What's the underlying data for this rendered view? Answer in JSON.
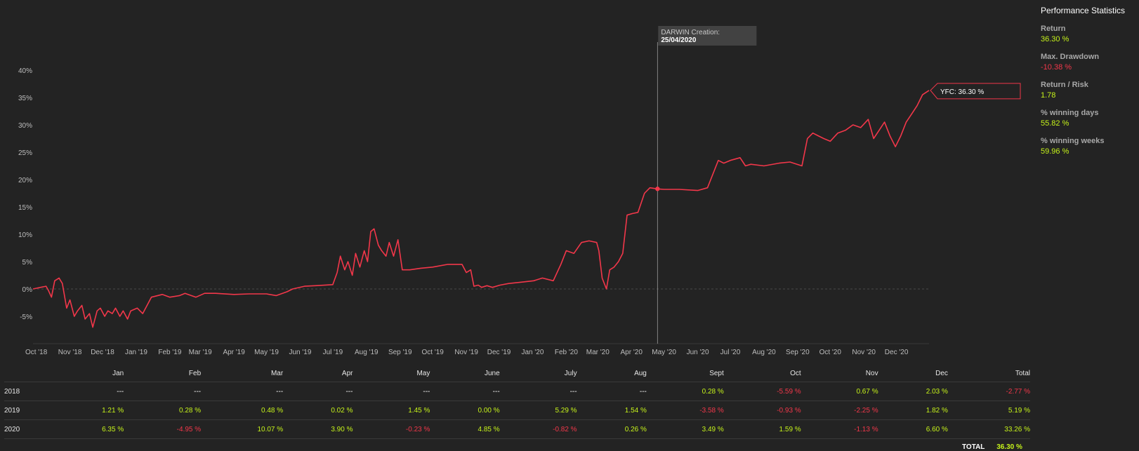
{
  "stats": {
    "title": "Performance Statistics",
    "items": [
      {
        "label": "Return",
        "value": "36.30 %",
        "tone": "pos"
      },
      {
        "label": "Max. Drawdown",
        "value": "-10.38 %",
        "tone": "neg"
      },
      {
        "label": "Return / Risk",
        "value": "1.78",
        "tone": "pos"
      },
      {
        "label": "% winning days",
        "value": "55.82 %",
        "tone": "pos"
      },
      {
        "label": "% winning weeks",
        "value": "59.96 %",
        "tone": "pos"
      }
    ]
  },
  "colors": {
    "line": "#f2374a",
    "positive": "#c5f21a",
    "negative": "#f2374a",
    "background": "#232323"
  },
  "chart_data": {
    "type": "line",
    "series": [
      {
        "name": "YFC"
      }
    ],
    "y_ticks": [
      "-5%",
      "0%",
      "5%",
      "10%",
      "15%",
      "20%",
      "25%",
      "30%",
      "35%",
      "40%"
    ],
    "ylim": [
      -10,
      45
    ],
    "x_ticks": [
      "Oct '18",
      "Nov '18",
      "Dec '18",
      "Jan '19",
      "Feb '19",
      "Mar '19",
      "Apr '19",
      "May '19",
      "Jun '19",
      "Jul '19",
      "Aug '19",
      "Sep '19",
      "Oct '19",
      "Nov '19",
      "Dec '19",
      "Jan '20",
      "Feb '20",
      "Mar '20",
      "Apr '20",
      "May '20",
      "Jun '20",
      "Jul '20",
      "Aug '20",
      "Sep '20",
      "Oct '20",
      "Nov '20",
      "Dec '20"
    ],
    "x": [
      "2018-09-28",
      "2018-10-05",
      "2018-10-10",
      "2018-10-12",
      "2018-10-15",
      "2018-10-18",
      "2018-10-22",
      "2018-10-25",
      "2018-10-29",
      "2018-11-01",
      "2018-11-05",
      "2018-11-08",
      "2018-11-12",
      "2018-11-15",
      "2018-11-19",
      "2018-11-22",
      "2018-11-26",
      "2018-11-29",
      "2018-12-03",
      "2018-12-06",
      "2018-12-10",
      "2018-12-13",
      "2018-12-17",
      "2018-12-20",
      "2018-12-24",
      "2018-12-27",
      "2019-01-02",
      "2019-01-07",
      "2019-01-15",
      "2019-01-25",
      "2019-02-01",
      "2019-02-10",
      "2019-02-15",
      "2019-02-25",
      "2019-03-05",
      "2019-03-15",
      "2019-04-01",
      "2019-04-15",
      "2019-05-01",
      "2019-05-10",
      "2019-05-20",
      "2019-05-25",
      "2019-06-05",
      "2019-06-15",
      "2019-07-01",
      "2019-07-05",
      "2019-07-08",
      "2019-07-12",
      "2019-07-15",
      "2019-07-19",
      "2019-07-22",
      "2019-07-26",
      "2019-07-30",
      "2019-08-02",
      "2019-08-05",
      "2019-08-08",
      "2019-08-12",
      "2019-08-15",
      "2019-08-19",
      "2019-08-22",
      "2019-08-26",
      "2019-08-30",
      "2019-09-03",
      "2019-09-10",
      "2019-09-20",
      "2019-10-01",
      "2019-10-15",
      "2019-10-28",
      "2019-11-01",
      "2019-11-05",
      "2019-11-08",
      "2019-11-12",
      "2019-11-15",
      "2019-11-20",
      "2019-11-25",
      "2019-12-02",
      "2019-12-10",
      "2019-12-20",
      "2020-01-02",
      "2020-01-10",
      "2020-01-20",
      "2020-01-27",
      "2020-02-01",
      "2020-02-08",
      "2020-02-15",
      "2020-02-22",
      "2020-02-29",
      "2020-03-02",
      "2020-03-05",
      "2020-03-09",
      "2020-03-12",
      "2020-03-16",
      "2020-03-20",
      "2020-03-24",
      "2020-03-28",
      "2020-04-02",
      "2020-04-07",
      "2020-04-13",
      "2020-04-18",
      "2020-04-25",
      "2020-05-01",
      "2020-05-15",
      "2020-06-01",
      "2020-06-10",
      "2020-06-15",
      "2020-06-20",
      "2020-06-25",
      "2020-07-01",
      "2020-07-10",
      "2020-07-15",
      "2020-07-20",
      "2020-08-01",
      "2020-08-15",
      "2020-08-25",
      "2020-09-05",
      "2020-09-10",
      "2020-09-15",
      "2020-09-20",
      "2020-09-25",
      "2020-10-01",
      "2020-10-08",
      "2020-10-15",
      "2020-10-22",
      "2020-10-29",
      "2020-11-05",
      "2020-11-10",
      "2020-11-15",
      "2020-11-20",
      "2020-11-25",
      "2020-11-30",
      "2020-12-05",
      "2020-12-10",
      "2020-12-15",
      "2020-12-20",
      "2020-12-25",
      "2020-12-31"
    ],
    "y": [
      0.0,
      0.3,
      0.5,
      -0.2,
      -1.5,
      1.5,
      2.0,
      1.0,
      -3.5,
      -2.0,
      -5.0,
      -4.0,
      -3.0,
      -5.5,
      -4.5,
      -7.0,
      -4.0,
      -3.5,
      -5.0,
      -4.0,
      -4.5,
      -3.5,
      -5.0,
      -4.0,
      -5.5,
      -4.0,
      -3.5,
      -4.5,
      -1.5,
      -1.0,
      -1.5,
      -1.2,
      -0.8,
      -1.5,
      -0.8,
      -0.8,
      -1.0,
      -0.9,
      -0.9,
      -1.2,
      -0.5,
      0.0,
      0.5,
      0.6,
      0.8,
      3.0,
      6.0,
      3.5,
      5.0,
      2.5,
      6.5,
      4.0,
      7.0,
      5.0,
      10.5,
      11.0,
      8.0,
      7.0,
      6.0,
      8.5,
      6.0,
      9.0,
      3.5,
      3.5,
      3.8,
      4.0,
      4.5,
      4.5,
      3.0,
      3.5,
      0.5,
      0.7,
      0.3,
      0.6,
      0.3,
      0.7,
      1.0,
      1.2,
      1.5,
      2.0,
      1.5,
      4.5,
      7.0,
      6.5,
      8.5,
      8.8,
      8.5,
      7.0,
      2.0,
      0.0,
      3.5,
      4.0,
      5.0,
      6.5,
      13.5,
      13.8,
      14.0,
      17.5,
      18.5,
      18.3,
      18.2,
      18.2,
      18.0,
      18.5,
      21.0,
      23.5,
      23.0,
      23.5,
      24.0,
      22.5,
      22.8,
      22.5,
      23.0,
      23.2,
      22.5,
      27.5,
      28.5,
      28.0,
      27.5,
      27.0,
      28.5,
      29.0,
      30.0,
      29.5,
      31.0,
      27.5,
      29.0,
      30.5,
      28.0,
      26.0,
      28.0,
      30.5,
      32.0,
      33.5,
      35.5,
      36.3
    ],
    "markers": {
      "creation": {
        "label": "DARWIN Creation:",
        "date": "25/04/2020",
        "x": "2020-04-25",
        "y": 18.3
      },
      "last": {
        "label": "YFC: 36.30 %",
        "x": "2020-12-31",
        "y": 36.3
      }
    }
  },
  "table": {
    "headers": [
      "",
      "Jan",
      "Feb",
      "Mar",
      "Apr",
      "May",
      "June",
      "July",
      "Aug",
      "Sept",
      "Oct",
      "Nov",
      "Dec",
      "Total"
    ],
    "rows": [
      {
        "year": "2018",
        "cells": [
          [
            "---",
            "neutral"
          ],
          [
            "---",
            "neutral"
          ],
          [
            "---",
            "neutral"
          ],
          [
            "---",
            "neutral"
          ],
          [
            "---",
            "neutral"
          ],
          [
            "---",
            "neutral"
          ],
          [
            "---",
            "neutral"
          ],
          [
            "---",
            "neutral"
          ],
          [
            "0.28 %",
            "pos"
          ],
          [
            "-5.59 %",
            "neg"
          ],
          [
            "0.67 %",
            "pos"
          ],
          [
            "2.03 %",
            "pos"
          ],
          [
            "-2.77 %",
            "neg"
          ]
        ]
      },
      {
        "year": "2019",
        "cells": [
          [
            "1.21 %",
            "pos"
          ],
          [
            "0.28 %",
            "pos"
          ],
          [
            "0.48 %",
            "pos"
          ],
          [
            "0.02 %",
            "pos"
          ],
          [
            "1.45 %",
            "pos"
          ],
          [
            "0.00 %",
            "pos"
          ],
          [
            "5.29 %",
            "pos"
          ],
          [
            "1.54 %",
            "pos"
          ],
          [
            "-3.58 %",
            "neg"
          ],
          [
            "-0.93 %",
            "neg"
          ],
          [
            "-2.25 %",
            "neg"
          ],
          [
            "1.82 %",
            "pos"
          ],
          [
            "5.19 %",
            "pos"
          ]
        ]
      },
      {
        "year": "2020",
        "cells": [
          [
            "6.35 %",
            "pos"
          ],
          [
            "-4.95 %",
            "neg"
          ],
          [
            "10.07 %",
            "pos"
          ],
          [
            "3.90 %",
            "pos"
          ],
          [
            "-0.23 %",
            "neg"
          ],
          [
            "4.85 %",
            "pos"
          ],
          [
            "-0.82 %",
            "neg"
          ],
          [
            "0.26 %",
            "pos"
          ],
          [
            "3.49 %",
            "pos"
          ],
          [
            "1.59 %",
            "pos"
          ],
          [
            "-1.13 %",
            "neg"
          ],
          [
            "6.60 %",
            "pos"
          ],
          [
            "33.26 %",
            "pos"
          ]
        ]
      }
    ],
    "total_label": "TOTAL",
    "total_value": "36.30 %"
  }
}
